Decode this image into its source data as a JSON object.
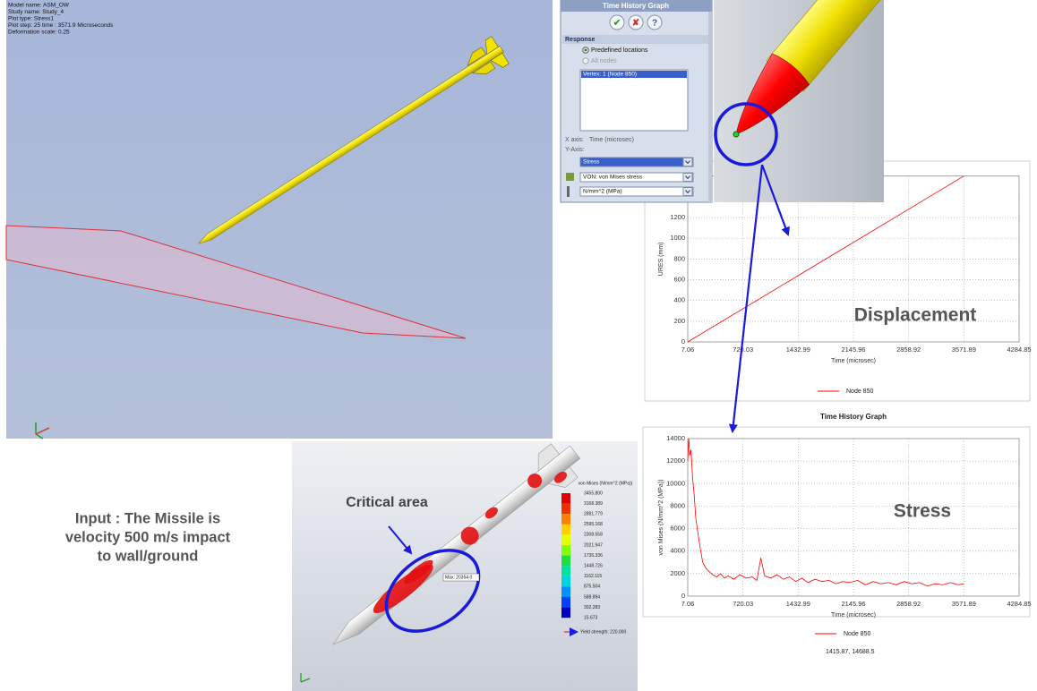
{
  "viewport_main": {
    "info": [
      "Model name: ASM_OW",
      "Study name: Study_4",
      "Plot type: Stress1",
      "Plot step: 25  time : 3571.9 Microseconds",
      "Deformation scale: 0.25"
    ]
  },
  "dialog": {
    "title": "Time History Graph",
    "section": "Response",
    "option_selected": "Predefined locations",
    "option_disabled": "All nodes",
    "list_item": "Vertex: 1 (Node 850)",
    "x_axis_label": "X axis:",
    "x_axis_value": "Time (microsec)",
    "y_axis_label": "Y-Axis:",
    "y_quantity": "Stress",
    "y_component": "VON: von Mises stress",
    "y_units": "N/mm^2 (MPa)"
  },
  "chart_data": [
    {
      "type": "line",
      "annotation": "Displacement",
      "x_label": "Time (microsec)",
      "y_label": "URES (mm)",
      "xlim": [
        7.06,
        4284.85
      ],
      "xticks": [
        7.06,
        720.03,
        1432.99,
        2145.96,
        2858.92,
        3571.89,
        4284.85
      ],
      "ylim": [
        0,
        1600
      ],
      "yticks": [
        0,
        200,
        400,
        600,
        800,
        1000,
        1200
      ],
      "grid": true,
      "x": [
        7.06,
        3571.89
      ],
      "series": [
        {
          "name": "Node 850",
          "color": "#ff0000",
          "values": [
            0,
            1600
          ]
        }
      ]
    },
    {
      "type": "line",
      "title": "Time History Graph",
      "annotation": "Stress",
      "x_label": "Time (microsec)",
      "y_label": "von Mises (N/mm^2 (MPa))",
      "footer": "1415.87, 14688.5",
      "xlim": [
        7.06,
        4284.85
      ],
      "xticks": [
        7.06,
        720.03,
        1432.99,
        2145.96,
        2858.92,
        3571.89,
        4284.85
      ],
      "ylim": [
        0,
        14000
      ],
      "yticks": [
        0,
        2000,
        4000,
        6000,
        8000,
        10000,
        12000,
        14000
      ],
      "grid": true,
      "x": [
        7.06,
        20,
        35,
        50,
        70,
        90,
        110,
        140,
        170,
        200,
        240,
        280,
        330,
        380,
        430,
        480,
        530,
        600,
        680,
        760,
        840,
        900,
        950,
        1000,
        1080,
        1160,
        1240,
        1320,
        1400,
        1480,
        1560,
        1650,
        1740,
        1830,
        1920,
        2010,
        2100,
        2200,
        2300,
        2400,
        2500,
        2600,
        2700,
        2800,
        2900,
        3000,
        3100,
        3200,
        3300,
        3400,
        3500,
        3571.89
      ],
      "series": [
        {
          "name": "Node 850",
          "color": "#ff0000",
          "values": [
            12000,
            14000,
            12500,
            13000,
            10500,
            9000,
            7000,
            5500,
            4200,
            3000,
            2500,
            2200,
            1900,
            1700,
            2000,
            1600,
            1800,
            1500,
            1900,
            1600,
            1700,
            1400,
            3400,
            1800,
            1600,
            1900,
            1500,
            1700,
            1300,
            1600,
            1200,
            1500,
            1300,
            1400,
            1100,
            1300,
            1200,
            1400,
            1000,
            1300,
            1100,
            1200,
            1000,
            1300,
            1100,
            1200,
            900,
            1100,
            1000,
            1200,
            1000,
            1100
          ]
        }
      ]
    }
  ],
  "input_note": [
    "Input : The Missile is",
    "velocity 500 m/s impact",
    "to wall/ground"
  ],
  "result_view": {
    "annotation": "Critical area",
    "max_label": "Max: 20354.0",
    "legend_title": "von Mises (N/mm^2 (MPa))",
    "legend_values": [
      "3455.800",
      "3168.389",
      "2881.779",
      "2595.168",
      "2308.558",
      "2021.947",
      "1735.336",
      "1448.726",
      "1162.115",
      "875.504",
      "588.894",
      "302.283",
      "15.673"
    ],
    "yield_label": "Yield strength: 220.000"
  }
}
